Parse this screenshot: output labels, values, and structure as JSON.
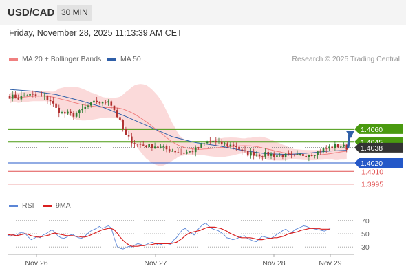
{
  "header": {
    "symbol": "USD/CAD",
    "interval": "30 MIN"
  },
  "timestamp": "Friday, November 28, 2025 11:13:39 AM CET",
  "legend": {
    "ma20": {
      "label": "MA 20 + Bollinger Bands",
      "color": "#f08080"
    },
    "ma50": {
      "label": "MA 50",
      "color": "#2f5fa8"
    },
    "credit": "Research © 2025 Trading Central"
  },
  "rsi_legend": {
    "rsi": {
      "label": "RSI",
      "color": "#5b86d6"
    },
    "ma9": {
      "label": "9MA",
      "color": "#d92020"
    }
  },
  "colors": {
    "up": "#2e7d32",
    "down": "#b03030",
    "green_level": "#4a9a10",
    "blue_level": "#2458c8",
    "red_level": "#e05050",
    "band_fill": "#fad4d4"
  },
  "chart_data": [
    {
      "type": "candlestick",
      "title": "USD/CAD",
      "x_labels": [
        "Nov 26",
        "Nov 27",
        "Nov 28",
        "Nov 29"
      ],
      "ylim": [
        1.3985,
        1.4125
      ],
      "current_price": 1.4038,
      "levels": [
        {
          "value": 1.406,
          "label": "1.4060",
          "style": "green"
        },
        {
          "value": 1.4045,
          "label": "1.4045",
          "style": "green"
        },
        {
          "value": 1.4038,
          "label": "1.4038",
          "style": "current"
        },
        {
          "value": 1.402,
          "label": "1.4020",
          "style": "blue"
        },
        {
          "value": 1.401,
          "label": "1.4010",
          "style": "red"
        },
        {
          "value": 1.3995,
          "label": "1.3995",
          "style": "red"
        }
      ],
      "close_path": [
        [
          0,
          1.4099
        ],
        [
          3,
          1.4097
        ],
        [
          6,
          1.4101
        ],
        [
          9,
          1.4099
        ],
        [
          12,
          1.4098
        ],
        [
          14,
          1.4094
        ],
        [
          16,
          1.4084
        ],
        [
          18,
          1.4079
        ],
        [
          20,
          1.4078
        ],
        [
          22,
          1.4077
        ],
        [
          24,
          1.408
        ],
        [
          26,
          1.4086
        ],
        [
          28,
          1.4089
        ],
        [
          30,
          1.4093
        ],
        [
          32,
          1.409
        ],
        [
          34,
          1.4095
        ],
        [
          36,
          1.4083
        ],
        [
          38,
          1.4068
        ],
        [
          40,
          1.4052
        ],
        [
          42,
          1.4046
        ],
        [
          44,
          1.4042
        ],
        [
          46,
          1.4041
        ],
        [
          48,
          1.404
        ],
        [
          50,
          1.404
        ],
        [
          52,
          1.4038
        ],
        [
          54,
          1.4036
        ],
        [
          56,
          1.4035
        ],
        [
          58,
          1.4033
        ],
        [
          60,
          1.4032
        ],
        [
          62,
          1.4033
        ],
        [
          64,
          1.4036
        ],
        [
          66,
          1.404
        ],
        [
          68,
          1.4045
        ],
        [
          70,
          1.4046
        ],
        [
          72,
          1.4043
        ],
        [
          74,
          1.4042
        ],
        [
          76,
          1.4041
        ],
        [
          78,
          1.404
        ],
        [
          80,
          1.4033
        ],
        [
          82,
          1.4031
        ],
        [
          84,
          1.4031
        ],
        [
          86,
          1.403
        ],
        [
          88,
          1.403
        ],
        [
          90,
          1.403
        ],
        [
          92,
          1.4029
        ],
        [
          94,
          1.4029
        ],
        [
          96,
          1.4028
        ],
        [
          98,
          1.4027
        ],
        [
          100,
          1.4029
        ],
        [
          102,
          1.403
        ],
        [
          104,
          1.4031
        ],
        [
          106,
          1.4033
        ],
        [
          108,
          1.4036
        ],
        [
          110,
          1.4038
        ],
        [
          112,
          1.404
        ],
        [
          114,
          1.404
        ],
        [
          116,
          1.4038
        ]
      ],
      "ma50": [
        [
          0,
          1.4107
        ],
        [
          8,
          1.4105
        ],
        [
          16,
          1.4101
        ],
        [
          24,
          1.4094
        ],
        [
          32,
          1.4086
        ],
        [
          40,
          1.4075
        ],
        [
          48,
          1.4063
        ],
        [
          56,
          1.4051
        ],
        [
          64,
          1.4044
        ],
        [
          72,
          1.404
        ],
        [
          80,
          1.4035
        ],
        [
          88,
          1.4031
        ],
        [
          96,
          1.403
        ],
        [
          104,
          1.4032
        ],
        [
          110,
          1.4034
        ],
        [
          116,
          1.4035
        ]
      ],
      "projection": {
        "from": 1.404,
        "to": 1.406
      }
    },
    {
      "type": "line",
      "title": "RSI",
      "ylim": [
        25,
        75
      ],
      "ticks": [
        70,
        50,
        30
      ],
      "series": [
        {
          "name": "RSI",
          "values": [
            48,
            46,
            49,
            47,
            51,
            52,
            50,
            45,
            41,
            43,
            46,
            44,
            48,
            50,
            53,
            56,
            52,
            47,
            44,
            43,
            45,
            48,
            49,
            46,
            44,
            43,
            46,
            50,
            54,
            56,
            58,
            61,
            58,
            60,
            62,
            59,
            44,
            31,
            28,
            27,
            29,
            31,
            30,
            33,
            35,
            34,
            32,
            34,
            36,
            37,
            35,
            33,
            34,
            36,
            35,
            34,
            40,
            44,
            50,
            56,
            58,
            54,
            51,
            48,
            55,
            60,
            64,
            66,
            61,
            58,
            56,
            55,
            52,
            49,
            44,
            43,
            41,
            42,
            44,
            46,
            47,
            43,
            41,
            39,
            38,
            42,
            46,
            45,
            44,
            43,
            46,
            49,
            52,
            55,
            57,
            53,
            52,
            56,
            58,
            60,
            62,
            61,
            59,
            58,
            57,
            56,
            55,
            54,
            56,
            58
          ]
        },
        {
          "name": "9MA",
          "values": [
            49,
            48,
            48,
            47,
            48,
            49,
            50,
            49,
            47,
            46,
            45,
            45,
            46,
            47,
            48,
            50,
            51,
            50,
            49,
            48,
            47,
            47,
            47,
            46,
            46,
            45,
            45,
            46,
            48,
            50,
            52,
            54,
            56,
            57,
            58,
            58,
            56,
            51,
            45,
            40,
            36,
            33,
            31,
            31,
            31,
            32,
            32,
            33,
            33,
            34,
            35,
            35,
            35,
            35,
            35,
            35,
            36,
            37,
            40,
            43,
            47,
            50,
            52,
            53,
            54,
            55,
            57,
            59,
            60,
            60,
            60,
            59,
            58,
            56,
            54,
            51,
            49,
            47,
            45,
            44,
            44,
            44,
            44,
            43,
            42,
            41,
            41,
            42,
            43,
            43,
            44,
            44,
            45,
            46,
            48,
            50,
            51,
            52,
            53,
            55,
            56,
            57,
            58,
            58,
            58,
            58,
            57,
            57,
            57,
            57
          ]
        }
      ]
    }
  ]
}
